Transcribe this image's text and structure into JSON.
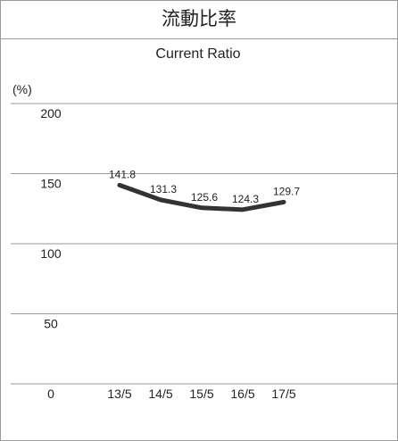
{
  "chart_data": {
    "type": "line",
    "title": "流動比率",
    "subtitle": "Current Ratio",
    "unit_label": "(%)",
    "categories": [
      "13/5",
      "14/5",
      "15/5",
      "16/5",
      "17/5"
    ],
    "series": [
      {
        "values": [
          141.8,
          131.3,
          125.6,
          124.3,
          129.7
        ],
        "labels": [
          "141.8",
          "131.3",
          "125.6",
          "124.3",
          "129.7"
        ]
      }
    ],
    "yticks": [
      200,
      150,
      100,
      50,
      0
    ],
    "ylim": [
      0,
      200
    ],
    "grid": true,
    "legend": "none",
    "colors": {
      "line": "#333333",
      "grid": "#9a9a9a",
      "text": "#222222"
    }
  }
}
